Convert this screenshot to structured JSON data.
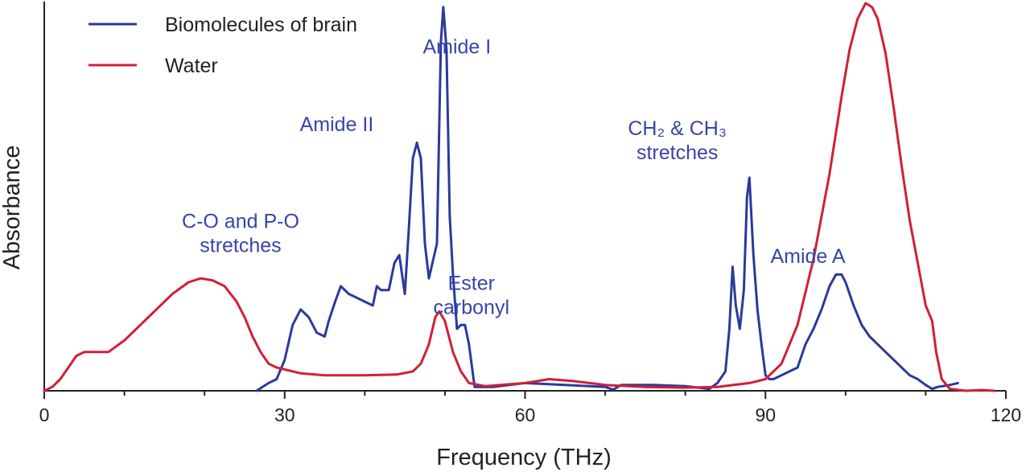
{
  "chart_data": {
    "type": "line",
    "title": "",
    "xlabel": "Frequency (THz)",
    "ylabel": "Absorbance",
    "xlim": [
      0,
      120
    ],
    "ylim": [
      0,
      1
    ],
    "xticks": [
      "0",
      "30",
      "60",
      "90",
      "120"
    ],
    "grid": false,
    "legend_position": "top-left",
    "series": [
      {
        "name": "Biomolecules of brain",
        "color": "#2a3a9c",
        "points": [
          [
            26.5,
            0.0
          ],
          [
            28.0,
            0.02
          ],
          [
            29.0,
            0.03
          ],
          [
            30.0,
            0.08
          ],
          [
            31.0,
            0.17
          ],
          [
            32.0,
            0.21
          ],
          [
            33.0,
            0.19
          ],
          [
            34.0,
            0.15
          ],
          [
            35.0,
            0.14
          ],
          [
            35.5,
            0.18
          ],
          [
            36.3,
            0.23
          ],
          [
            37.0,
            0.27
          ],
          [
            38.0,
            0.25
          ],
          [
            39.0,
            0.24
          ],
          [
            40.0,
            0.23
          ],
          [
            41.0,
            0.22
          ],
          [
            41.5,
            0.27
          ],
          [
            42.0,
            0.26
          ],
          [
            43.0,
            0.26
          ],
          [
            43.7,
            0.33
          ],
          [
            44.3,
            0.35
          ],
          [
            45.0,
            0.25
          ],
          [
            45.5,
            0.42
          ],
          [
            46.0,
            0.6
          ],
          [
            46.5,
            0.64
          ],
          [
            47.0,
            0.6
          ],
          [
            47.5,
            0.38
          ],
          [
            48.0,
            0.29
          ],
          [
            49.0,
            0.38
          ],
          [
            49.5,
            0.9
          ],
          [
            49.8,
            0.99
          ],
          [
            50.2,
            0.88
          ],
          [
            50.6,
            0.45
          ],
          [
            51.0,
            0.3
          ],
          [
            51.5,
            0.16
          ],
          [
            52.0,
            0.17
          ],
          [
            52.5,
            0.17
          ],
          [
            53.0,
            0.12
          ],
          [
            53.7,
            0.01
          ],
          [
            56.0,
            0.01
          ],
          [
            60.0,
            0.02
          ],
          [
            65.0,
            0.015
          ],
          [
            70.0,
            0.01
          ],
          [
            71.0,
            0.003
          ],
          [
            72.0,
            0.015
          ],
          [
            76.0,
            0.015
          ],
          [
            80.0,
            0.012
          ],
          [
            83.0,
            0.005
          ],
          [
            84.0,
            0.02
          ],
          [
            85.0,
            0.05
          ],
          [
            85.5,
            0.16
          ],
          [
            85.9,
            0.32
          ],
          [
            86.3,
            0.22
          ],
          [
            86.8,
            0.16
          ],
          [
            87.3,
            0.26
          ],
          [
            87.7,
            0.5
          ],
          [
            88.0,
            0.55
          ],
          [
            88.5,
            0.35
          ],
          [
            89.0,
            0.21
          ],
          [
            89.5,
            0.12
          ],
          [
            90.0,
            0.04
          ],
          [
            90.5,
            0.03
          ],
          [
            91.0,
            0.03
          ],
          [
            92.0,
            0.04
          ],
          [
            93.0,
            0.05
          ],
          [
            94.0,
            0.06
          ],
          [
            95.0,
            0.12
          ],
          [
            96.0,
            0.16
          ],
          [
            97.0,
            0.21
          ],
          [
            98.0,
            0.27
          ],
          [
            98.8,
            0.3
          ],
          [
            99.5,
            0.3
          ],
          [
            100.0,
            0.28
          ],
          [
            101.0,
            0.22
          ],
          [
            102.0,
            0.17
          ],
          [
            103.0,
            0.14
          ],
          [
            104.0,
            0.12
          ],
          [
            105.0,
            0.1
          ],
          [
            106.0,
            0.08
          ],
          [
            107.0,
            0.06
          ],
          [
            108.0,
            0.04
          ],
          [
            109.0,
            0.03
          ],
          [
            110.0,
            0.015
          ],
          [
            110.8,
            0.005
          ],
          [
            111.5,
            0.01
          ],
          [
            113.0,
            0.015
          ],
          [
            114.0,
            0.02
          ]
        ]
      },
      {
        "name": "Water",
        "color": "#d11f38",
        "points": [
          [
            0.0,
            0.0
          ],
          [
            1.0,
            0.01
          ],
          [
            2.0,
            0.03
          ],
          [
            3.0,
            0.06
          ],
          [
            4.0,
            0.09
          ],
          [
            5.0,
            0.1
          ],
          [
            6.0,
            0.1
          ],
          [
            7.0,
            0.1
          ],
          [
            8.0,
            0.1
          ],
          [
            10.0,
            0.13
          ],
          [
            12.0,
            0.17
          ],
          [
            14.0,
            0.21
          ],
          [
            16.0,
            0.25
          ],
          [
            18.0,
            0.28
          ],
          [
            19.5,
            0.29
          ],
          [
            21.0,
            0.285
          ],
          [
            22.5,
            0.27
          ],
          [
            24.0,
            0.23
          ],
          [
            25.0,
            0.19
          ],
          [
            26.0,
            0.14
          ],
          [
            27.0,
            0.1
          ],
          [
            28.0,
            0.07
          ],
          [
            29.0,
            0.06
          ],
          [
            30.0,
            0.055
          ],
          [
            32.0,
            0.045
          ],
          [
            35.0,
            0.04
          ],
          [
            40.0,
            0.04
          ],
          [
            44.0,
            0.042
          ],
          [
            46.0,
            0.05
          ],
          [
            47.0,
            0.07
          ],
          [
            48.0,
            0.12
          ],
          [
            48.8,
            0.19
          ],
          [
            49.3,
            0.205
          ],
          [
            50.0,
            0.18
          ],
          [
            50.5,
            0.14
          ],
          [
            51.0,
            0.1
          ],
          [
            52.0,
            0.05
          ],
          [
            53.0,
            0.02
          ],
          [
            55.0,
            0.012
          ],
          [
            60.0,
            0.02
          ],
          [
            63.0,
            0.03
          ],
          [
            66.0,
            0.025
          ],
          [
            70.0,
            0.015
          ],
          [
            75.0,
            0.01
          ],
          [
            80.0,
            0.008
          ],
          [
            84.0,
            0.01
          ],
          [
            86.0,
            0.015
          ],
          [
            88.0,
            0.02
          ],
          [
            90.0,
            0.03
          ],
          [
            92.0,
            0.07
          ],
          [
            94.0,
            0.17
          ],
          [
            96.0,
            0.34
          ],
          [
            98.0,
            0.56
          ],
          [
            99.5,
            0.76
          ],
          [
            100.5,
            0.88
          ],
          [
            101.5,
            0.96
          ],
          [
            102.5,
            1.0
          ],
          [
            103.3,
            0.99
          ],
          [
            104.0,
            0.96
          ],
          [
            105.0,
            0.87
          ],
          [
            106.0,
            0.73
          ],
          [
            107.0,
            0.58
          ],
          [
            108.0,
            0.44
          ],
          [
            109.0,
            0.33
          ],
          [
            110.0,
            0.22
          ],
          [
            110.8,
            0.18
          ],
          [
            111.3,
            0.1
          ],
          [
            112.0,
            0.03
          ],
          [
            113.0,
            0.005
          ],
          [
            115.0,
            0.0
          ],
          [
            117.0,
            0.002
          ],
          [
            118.5,
            0.0
          ]
        ]
      }
    ],
    "annotations": [
      {
        "id": "amide-i",
        "lines": [
          "Amide I"
        ],
        "x": 51.5,
        "y": 0.87,
        "color": "#3645a8"
      },
      {
        "id": "amide-ii",
        "lines": [
          "Amide II"
        ],
        "x": 36.5,
        "y": 0.67,
        "color": "#3645a8"
      },
      {
        "id": "co-po",
        "lines": [
          "C-O and P-O",
          "stretches"
        ],
        "x": 24.5,
        "y": 0.42,
        "color": "#3645a8"
      },
      {
        "id": "ester",
        "lines": [
          "Ester",
          "carbonyl"
        ],
        "x": 53.3,
        "y": 0.26,
        "color": "#3645a8"
      },
      {
        "id": "ch-stretch",
        "lines": [
          "CH₂ & CH₃",
          "stretches"
        ],
        "x": 79.0,
        "y": 0.66,
        "color": "#3645a8"
      },
      {
        "id": "amide-a",
        "lines": [
          "Amide A"
        ],
        "x": 95.3,
        "y": 0.33,
        "color": "#3645a8"
      }
    ]
  }
}
